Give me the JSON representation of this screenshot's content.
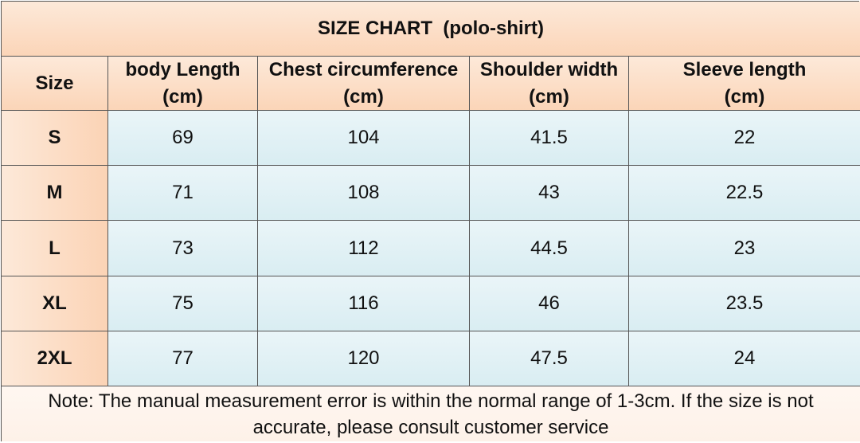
{
  "title": "SIZE CHART  (polo-shirt)",
  "table": {
    "header": [
      {
        "label": "Size"
      },
      {
        "label": "body Length",
        "unit": "(cm)"
      },
      {
        "label": "Chest circumference",
        "unit": "(cm)"
      },
      {
        "label": "Shoulder width",
        "unit": "(cm)"
      },
      {
        "label": "Sleeve length",
        "unit": "(cm)"
      }
    ],
    "rows": [
      [
        "S",
        69,
        104,
        41.5,
        22
      ],
      [
        "M",
        71,
        108,
        43,
        22.5
      ],
      [
        "L",
        73,
        112,
        44.5,
        23
      ],
      [
        "XL",
        75,
        116,
        46,
        23.5
      ],
      [
        "2XL",
        77,
        120,
        47.5,
        24
      ]
    ]
  },
  "note": "Note: The manual measurement error is within the normal range of 1-3cm. If the size is not accurate, please consult customer service"
}
